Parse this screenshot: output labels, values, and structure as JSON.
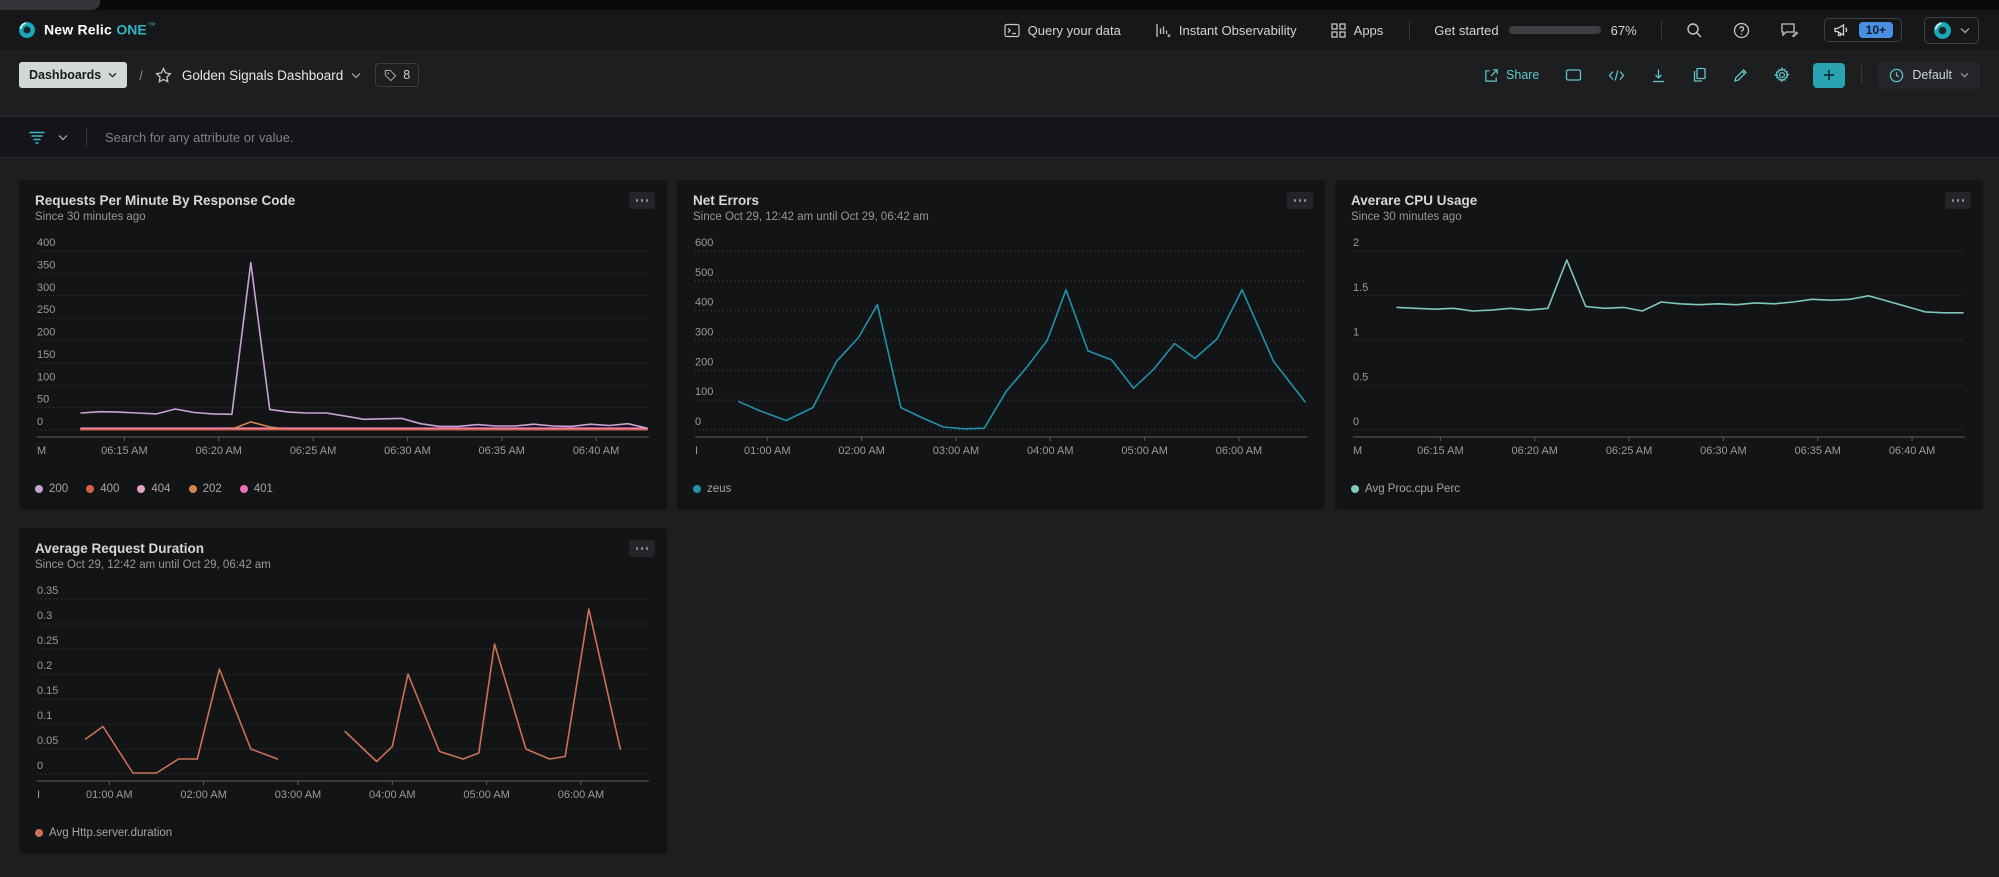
{
  "app": {
    "brand": "New Relic",
    "brand_suffix": "ONE",
    "brand_tm": "™"
  },
  "navbar": {
    "query_your_data": "Query your data",
    "instant_observability": "Instant Observability",
    "apps": "Apps",
    "get_started": "Get started",
    "progress_percent": 67,
    "progress_label": "67%",
    "notifications_badge": "10+"
  },
  "toolbar": {
    "dashboards_button": "Dashboards",
    "breadcrumb_separator": "/",
    "dashboard_title": "Golden Signals Dashboard",
    "tag_count": "8",
    "share_label": "Share",
    "default_label": "Default"
  },
  "filter_bar": {
    "placeholder": "Search for any attribute or value."
  },
  "colors": {
    "accent_teal": "#2fb5c7",
    "progress_fill": "#1b96a8",
    "badge_blue": "#4a90e2",
    "panel_bg": "#131416",
    "page_bg": "#1d1e20"
  },
  "panels": [
    {
      "title": "Requests Per Minute By Response Code",
      "subtitle": "Since 30 minutes ago",
      "chart_data": {
        "type": "line",
        "x_domain_minutes": [
          0,
          30
        ],
        "x_start_label": "M",
        "x_ticks": [
          {
            "t": 2.3,
            "label": "06:15 AM"
          },
          {
            "t": 7.3,
            "label": "06:20 AM"
          },
          {
            "t": 12.3,
            "label": "06:25 AM"
          },
          {
            "t": 17.3,
            "label": "06:30 AM"
          },
          {
            "t": 22.3,
            "label": "06:35 AM"
          },
          {
            "t": 27.3,
            "label": "06:40 AM"
          }
        ],
        "ylim": [
          0,
          400
        ],
        "y_ticks": [
          400,
          350,
          300,
          250,
          200,
          150,
          100,
          50,
          0
        ],
        "grid": "dotted",
        "legend_position": "bottom",
        "series": [
          {
            "name": "200",
            "color": "#c9a2d4",
            "values": [
              38,
              41,
              40,
              38,
              36,
              47,
              39,
              36,
              35,
              374,
              46,
              40,
              38,
              38,
              31,
              24,
              25,
              26,
              14,
              8,
              8,
              12,
              9,
              9,
              13,
              9,
              8,
              13,
              10,
              14,
              4
            ]
          },
          {
            "name": "400",
            "color": "#d5624d",
            "values": [
              1,
              1,
              1,
              1,
              1,
              1,
              1,
              1,
              1,
              1,
              1,
              1,
              1,
              1,
              1,
              1,
              1,
              1,
              1,
              1,
              1,
              1,
              1,
              1,
              1,
              1,
              1,
              1,
              1,
              1,
              1
            ]
          },
          {
            "name": "404",
            "color": "#e2a3c7",
            "values": [
              2,
              2,
              2,
              2,
              2,
              2,
              2,
              2,
              2,
              2,
              2,
              2,
              2,
              2,
              2,
              2,
              2,
              2,
              2,
              2,
              2,
              2,
              2,
              2,
              2,
              2,
              2,
              2,
              2,
              2,
              2
            ]
          },
          {
            "name": "202",
            "color": "#d8814f",
            "values": [
              1,
              1,
              1,
              1,
              1,
              1,
              1,
              1,
              2,
              18,
              7,
              1,
              1,
              1,
              1,
              1,
              1,
              1,
              1,
              1,
              1,
              1,
              1,
              1,
              1,
              1,
              1,
              1,
              1,
              1,
              1
            ]
          },
          {
            "name": "401",
            "color": "#ee6fb2",
            "values": [
              4,
              4,
              4,
              4,
              4,
              4,
              4,
              4,
              4,
              4,
              4,
              4,
              4,
              4,
              4,
              4,
              4,
              4,
              4,
              4,
              4,
              4,
              4,
              4,
              4,
              4,
              4,
              4,
              4,
              4,
              4
            ]
          }
        ]
      }
    },
    {
      "title": "Net Errors",
      "subtitle": "Since Oct 29, 12:42 am until Oct 29, 06:42 am",
      "chart_data": {
        "type": "line",
        "x_domain_minutes": [
          0,
          360
        ],
        "x_start_label": "I",
        "x_ticks": [
          {
            "t": 18,
            "label": "01:00 AM"
          },
          {
            "t": 78,
            "label": "02:00 AM"
          },
          {
            "t": 138,
            "label": "03:00 AM"
          },
          {
            "t": 198,
            "label": "04:00 AM"
          },
          {
            "t": 258,
            "label": "05:00 AM"
          },
          {
            "t": 318,
            "label": "06:00 AM"
          }
        ],
        "ylim": [
          0,
          600
        ],
        "y_ticks": [
          600,
          500,
          400,
          300,
          200,
          100,
          0
        ],
        "grid": "dotted",
        "legend_position": "bottom",
        "series": [
          {
            "name": "zeus",
            "color": "#2191ad",
            "segments": [
              [
                [
                  0,
                  95
                ],
                [
                  13,
                  65
                ],
                [
                  30,
                  32
                ],
                [
                  47,
                  75
                ],
                [
                  62,
                  230
                ],
                [
                  76,
                  310
                ],
                [
                  88,
                  420
                ],
                [
                  103,
                  75
                ],
                [
                  117,
                  40
                ],
                [
                  130,
                  10
                ],
                [
                  143,
                  4
                ],
                [
                  156,
                  6
                ],
                [
                  170,
                  130
                ],
                [
                  183,
                  210
                ],
                [
                  196,
                  300
                ],
                [
                  208,
                  470
                ],
                [
                  222,
                  265
                ],
                [
                  237,
                  235
                ],
                [
                  251,
                  140
                ],
                [
                  264,
                  205
                ],
                [
                  277,
                  290
                ],
                [
                  290,
                  240
                ],
                [
                  304,
                  305
                ],
                [
                  320,
                  470
                ],
                [
                  340,
                  230
                ],
                [
                  360,
                  95
                ]
              ]
            ]
          }
        ]
      }
    },
    {
      "title": "Averare CPU Usage",
      "subtitle": "Since 30 minutes ago",
      "chart_data": {
        "type": "line",
        "x_domain_minutes": [
          0,
          30
        ],
        "x_start_label": "M",
        "x_ticks": [
          {
            "t": 2.3,
            "label": "06:15 AM"
          },
          {
            "t": 7.3,
            "label": "06:20 AM"
          },
          {
            "t": 12.3,
            "label": "06:25 AM"
          },
          {
            "t": 17.3,
            "label": "06:30 AM"
          },
          {
            "t": 22.3,
            "label": "06:35 AM"
          },
          {
            "t": 27.3,
            "label": "06:40 AM"
          }
        ],
        "ylim": [
          0,
          2
        ],
        "y_ticks": [
          2,
          1.5,
          1,
          0.5,
          0
        ],
        "grid": "dotted",
        "legend_position": "bottom",
        "series": [
          {
            "name": "Avg Proc.cpu Perc",
            "color": "#7ec8bf",
            "values": [
              1.37,
              1.36,
              1.35,
              1.36,
              1.33,
              1.34,
              1.36,
              1.34,
              1.36,
              1.9,
              1.38,
              1.36,
              1.37,
              1.33,
              1.43,
              1.41,
              1.4,
              1.41,
              1.4,
              1.42,
              1.41,
              1.43,
              1.46,
              1.45,
              1.46,
              1.5,
              1.44,
              1.38,
              1.32,
              1.31,
              1.31
            ]
          }
        ]
      }
    },
    {
      "title": "Average Request Duration",
      "subtitle": "Since Oct 29, 12:42 am until Oct 29, 06:42 am",
      "chart_data": {
        "type": "line",
        "x_domain_minutes": [
          0,
          360
        ],
        "x_start_label": "I",
        "x_ticks": [
          {
            "t": 18,
            "label": "01:00 AM"
          },
          {
            "t": 78,
            "label": "02:00 AM"
          },
          {
            "t": 138,
            "label": "03:00 AM"
          },
          {
            "t": 198,
            "label": "04:00 AM"
          },
          {
            "t": 258,
            "label": "05:00 AM"
          },
          {
            "t": 318,
            "label": "06:00 AM"
          }
        ],
        "ylim": [
          0,
          0.35
        ],
        "y_ticks": [
          0.35,
          0.3,
          0.25,
          0.2,
          0.15,
          0.1,
          0.05,
          0
        ],
        "grid": "dotted",
        "legend_position": "bottom",
        "series": [
          {
            "name": "Avg Http.server.duration",
            "color": "#ca7158",
            "segments": [
              [
                [
                  3,
                  0.07
                ],
                [
                  14,
                  0.095
                ],
                [
                  33,
                  0.002
                ],
                [
                  48,
                  0.002
                ],
                [
                  62,
                  0.03
                ],
                [
                  74,
                  0.03
                ],
                [
                  88,
                  0.21
                ],
                [
                  108,
                  0.05
                ],
                [
                  125,
                  0.03
                ]
              ],
              [
                [
                  168,
                  0.085
                ],
                [
                  188,
                  0.025
                ],
                [
                  198,
                  0.055
                ],
                [
                  208,
                  0.2
                ],
                [
                  228,
                  0.045
                ],
                [
                  243,
                  0.03
                ],
                [
                  253,
                  0.042
                ],
                [
                  263,
                  0.26
                ],
                [
                  283,
                  0.05
                ],
                [
                  298,
                  0.03
                ],
                [
                  308,
                  0.035
                ],
                [
                  323,
                  0.33
                ],
                [
                  343,
                  0.05
                ]
              ]
            ]
          }
        ]
      }
    }
  ]
}
